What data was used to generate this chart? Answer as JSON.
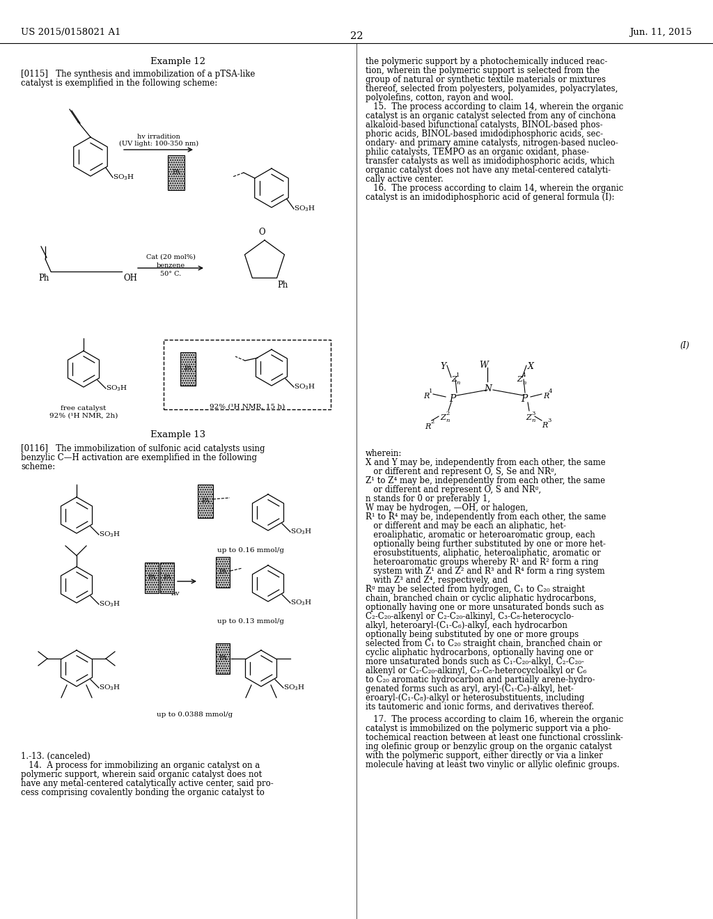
{
  "bg_color": "#ffffff",
  "page_number": "22",
  "header_left": "US 2015/0158021 A1",
  "header_right": "Jun. 11, 2015",
  "right_col_lines": [
    "the polymeric support by a photochemically induced reac-",
    "tion, wherein the polymeric support is selected from the",
    "group of natural or synthetic textile materials or mixtures",
    "thereof, selected from polyesters, polyamides, polyacrylates,",
    "polyolefins, cotton, rayon and wool.",
    "   15.  The process according to claim 14, wherein the organic",
    "catalyst is an organic catalyst selected from any of cinchona",
    "alkaloid-based bifunctional catalysts, BINOL-based phos-",
    "phoric acids, BINOL-based imidodiphosphoric acids, sec-",
    "ondary- and primary amine catalysts, nitrogen-based nucleo-",
    "philic catalysts, TEMPO as an organic oxidant, phase-",
    "transfer catalysts as well as imidodiphosphoric acids, which",
    "organic catalyst does not have any metal-centered catalyti-",
    "cally active center.",
    "   16.  The process according to claim 14, wherein the organic",
    "catalyst is an imidodiphosphoric acid of general formula (I):"
  ],
  "wherein_lines": [
    "wherein:",
    "X and Y may be, independently from each other, the same",
    "   or different and represent O, S, Se and NRᵍ,",
    "Z¹ to Z⁴ may be, independently from each other, the same",
    "   or different and represent O, S and NRᵍ,",
    "n stands for 0 or preferably 1,",
    "W may be hydrogen, —OH, or halogen,",
    "R¹ to R⁴ may be, independently from each other, the same",
    "   or different and may be each an aliphatic, het-",
    "   eroaliphatic, aromatic or heteroaromatic group, each",
    "   optionally being further substituted by one or more het-",
    "   erosubstituents, aliphatic, heteroaliphatic, aromatic or",
    "   heteroaromatic groups whereby R¹ and R² form a ring",
    "   system with Z¹ and Z² and R³ and R⁴ form a ring system",
    "   with Z³ and Z⁴, respectively, and",
    "Rᵍ may be selected from hydrogen, C₁ to C₂₀ straight",
    "chain, branched chain or cyclic aliphatic hydrocarbons,",
    "optionally having one or more unsaturated bonds such as",
    "C₂-C₂₀-alkenyl or C₂-C₂₀-alkinyl, C₃-C₈-heterocyclo-",
    "alkyl, heteroaryl-(C₁-C₆)-alkyl, each hydrocarbon",
    "optionally being substituted by one or more groups",
    "selected from C₁ to C₂₀ straight chain, branched chain or",
    "cyclic aliphatic hydrocarbons, optionally having one or",
    "more unsaturated bonds such as C₁-C₂₀-alkyl, C₂-C₂₀-",
    "alkenyl or C₂-C₂₀-alkinyl, C₃-C₈-heterocycloalkyl or C₆",
    "to C₂₀ aromatic hydrocarbon and partially arene-hydro-",
    "genated forms such as aryl, aryl-(C₁-C₈)-alkyl, het-",
    "eroaryl-(C₁-C₈)-alkyl or heterosubstituents, including",
    "its tautomeric and ionic forms, and derivatives thereof."
  ],
  "claim17_lines": [
    "   17.  The process according to claim 16, wherein the organic",
    "catalyst is immobilized on the polymeric support via a pho-",
    "tochemical reaction between at least one functional crosslink-",
    "ing olefinic group or benzylic group on the organic catalyst",
    "with the polymeric support, either directly or via a linker",
    "molecule having at least two vinylic or allylic olefinic groups."
  ]
}
